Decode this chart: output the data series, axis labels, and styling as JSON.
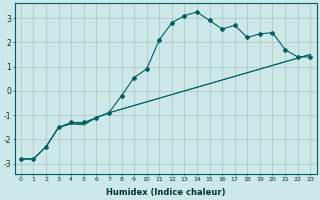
{
  "title": "",
  "xlabel": "Humidex (Indice chaleur)",
  "ylabel": "",
  "background_color": "#cde8e8",
  "grid_color": "#b0c8c8",
  "line_color": "#006060",
  "xlim": [
    -0.5,
    23.5
  ],
  "ylim": [
    -3.4,
    3.6
  ],
  "yticks": [
    -3,
    -2,
    -1,
    0,
    1,
    2,
    3
  ],
  "xticks": [
    0,
    1,
    2,
    3,
    4,
    5,
    6,
    7,
    8,
    9,
    10,
    11,
    12,
    13,
    14,
    15,
    16,
    17,
    18,
    19,
    20,
    21,
    22,
    23
  ],
  "series1_x": [
    0,
    1,
    2,
    3,
    4,
    5,
    6,
    7,
    8,
    9,
    10,
    11,
    12,
    13,
    14,
    15,
    16,
    17,
    18,
    19,
    20,
    21,
    22,
    23
  ],
  "series1_y": [
    -2.8,
    -2.8,
    -2.3,
    -1.5,
    -1.3,
    -1.3,
    -1.1,
    -0.9,
    -0.2,
    0.55,
    0.9,
    2.1,
    2.8,
    3.1,
    3.25,
    2.9,
    2.55,
    2.7,
    2.2,
    2.35,
    2.4,
    1.7,
    1.4,
    1.4
  ],
  "series2_x": [
    0,
    1,
    2,
    3,
    4,
    5,
    6,
    7,
    23
  ],
  "series2_y": [
    -2.8,
    -2.8,
    -2.3,
    -1.5,
    -1.35,
    -1.35,
    -1.1,
    -0.9,
    1.5
  ],
  "series3_x": [
    0,
    1,
    2,
    3,
    4,
    5,
    6,
    7,
    23
  ],
  "series3_y": [
    -2.8,
    -2.8,
    -2.3,
    -1.5,
    -1.35,
    -1.4,
    -1.1,
    -0.9,
    1.5
  ]
}
